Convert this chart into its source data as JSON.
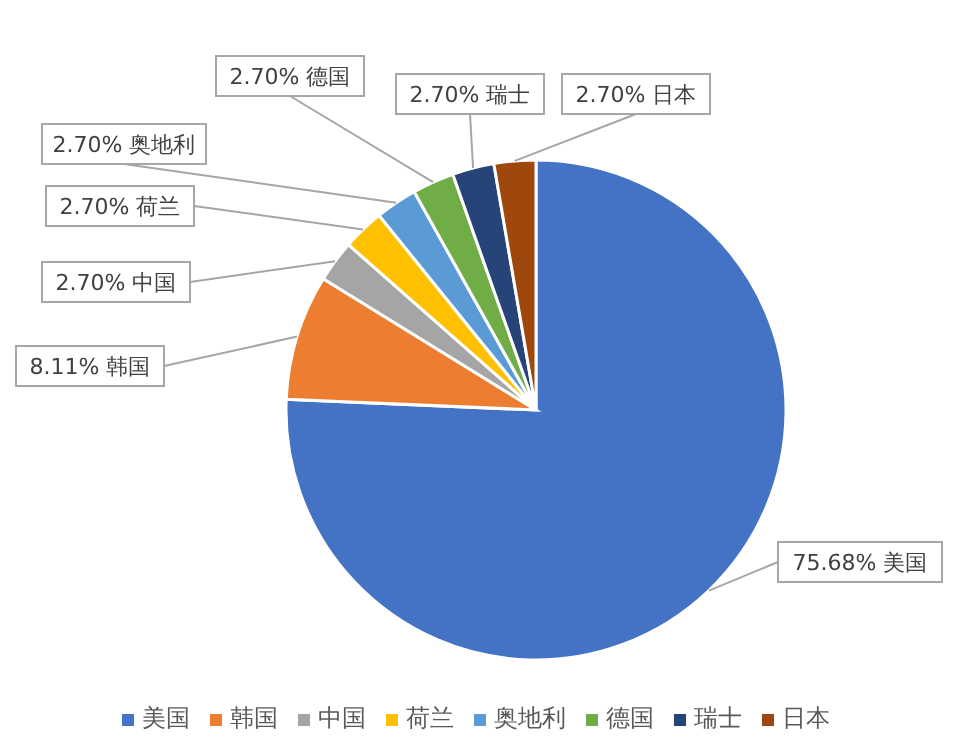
{
  "chart_data": {
    "type": "pie",
    "categories": [
      "美国",
      "韩国",
      "中国",
      "荷兰",
      "奥地利",
      "德国",
      "瑞士",
      "日本"
    ],
    "values": [
      75.68,
      8.11,
      2.7,
      2.7,
      2.7,
      2.7,
      2.7,
      2.7
    ],
    "colors": [
      "#4472c4",
      "#ed7d31",
      "#a5a5a5",
      "#ffc000",
      "#5b9bd5",
      "#70ad47",
      "#264478",
      "#9e480e"
    ],
    "value_labels": [
      "75.68%",
      "8.11%",
      "2.70%",
      "2.70%",
      "2.70%",
      "2.70%",
      "2.70%",
      "2.70%"
    ],
    "legend": "bottom"
  }
}
